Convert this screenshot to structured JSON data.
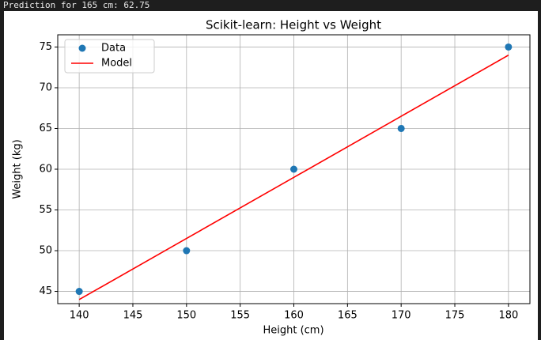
{
  "output": {
    "text": "Prediction for 165 cm: 62.75"
  },
  "chart_data": {
    "type": "scatter",
    "title": "Scikit-learn: Height vs Weight",
    "xlabel": "Height (cm)",
    "ylabel": "Weight (kg)",
    "series": [
      {
        "name": "Data",
        "kind": "scatter",
        "color": "#1f77b4",
        "x": [
          140,
          150,
          160,
          170,
          180
        ],
        "values": [
          45,
          50,
          60,
          65,
          75
        ]
      },
      {
        "name": "Model",
        "kind": "line",
        "color": "#ff0000",
        "x": [
          140,
          150,
          160,
          170,
          180
        ],
        "values": [
          44,
          51.5,
          59,
          66.5,
          74
        ]
      }
    ],
    "xlim": [
      138,
      182
    ],
    "xticks": [
      140,
      145,
      150,
      155,
      160,
      165,
      170,
      175,
      180
    ],
    "ylim": [
      43.5,
      76.5
    ],
    "yticks": [
      45,
      50,
      55,
      60,
      65,
      70,
      75
    ],
    "grid": true,
    "legend": "upper left"
  }
}
